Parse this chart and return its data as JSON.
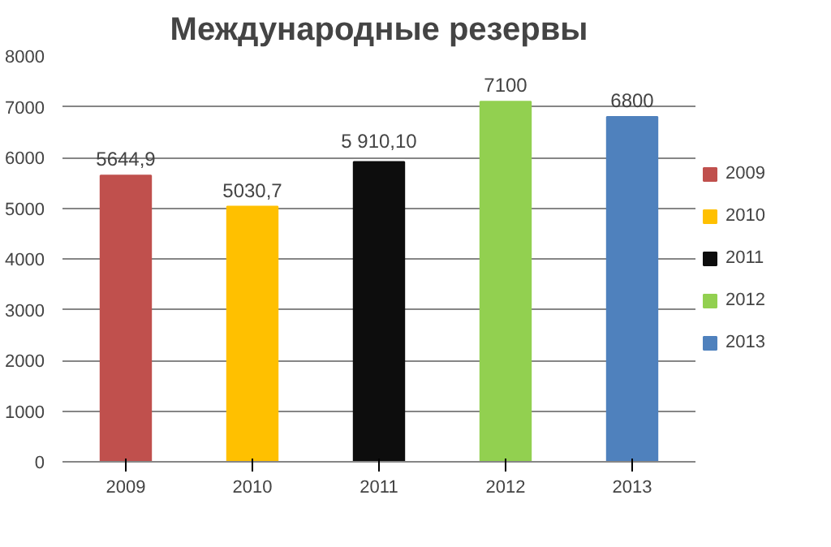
{
  "chart_data": {
    "type": "bar",
    "title": "Международные резервы",
    "categories": [
      "2009",
      "2010",
      "2011",
      "2012",
      "2013"
    ],
    "series": [
      {
        "name": "2009",
        "color": "#c0504d",
        "values": [
          5644.9,
          null,
          null,
          null,
          null
        ],
        "value_labels": [
          "5644,9",
          null,
          null,
          null,
          null
        ]
      },
      {
        "name": "2010",
        "color": "#ffc000",
        "values": [
          null,
          5030.7,
          null,
          null,
          null
        ],
        "value_labels": [
          null,
          "5030,7",
          null,
          null,
          null
        ]
      },
      {
        "name": "2011",
        "color": "#0d0d0d",
        "values": [
          null,
          null,
          5910.1,
          null,
          null
        ],
        "value_labels": [
          null,
          null,
          "5 910,10",
          null,
          null
        ]
      },
      {
        "name": "2012",
        "color": "#92d050",
        "values": [
          null,
          null,
          null,
          7100,
          null
        ],
        "value_labels": [
          null,
          null,
          null,
          "7100",
          null
        ]
      },
      {
        "name": "2013",
        "color": "#4f81bd",
        "values": [
          null,
          null,
          null,
          null,
          6800
        ],
        "value_labels": [
          null,
          null,
          null,
          null,
          "6800"
        ]
      }
    ],
    "ylim": [
      0,
      8000
    ],
    "yticks": [
      0,
      1000,
      2000,
      3000,
      4000,
      5000,
      6000,
      7000,
      8000
    ],
    "grid": "y",
    "legend": "right"
  }
}
